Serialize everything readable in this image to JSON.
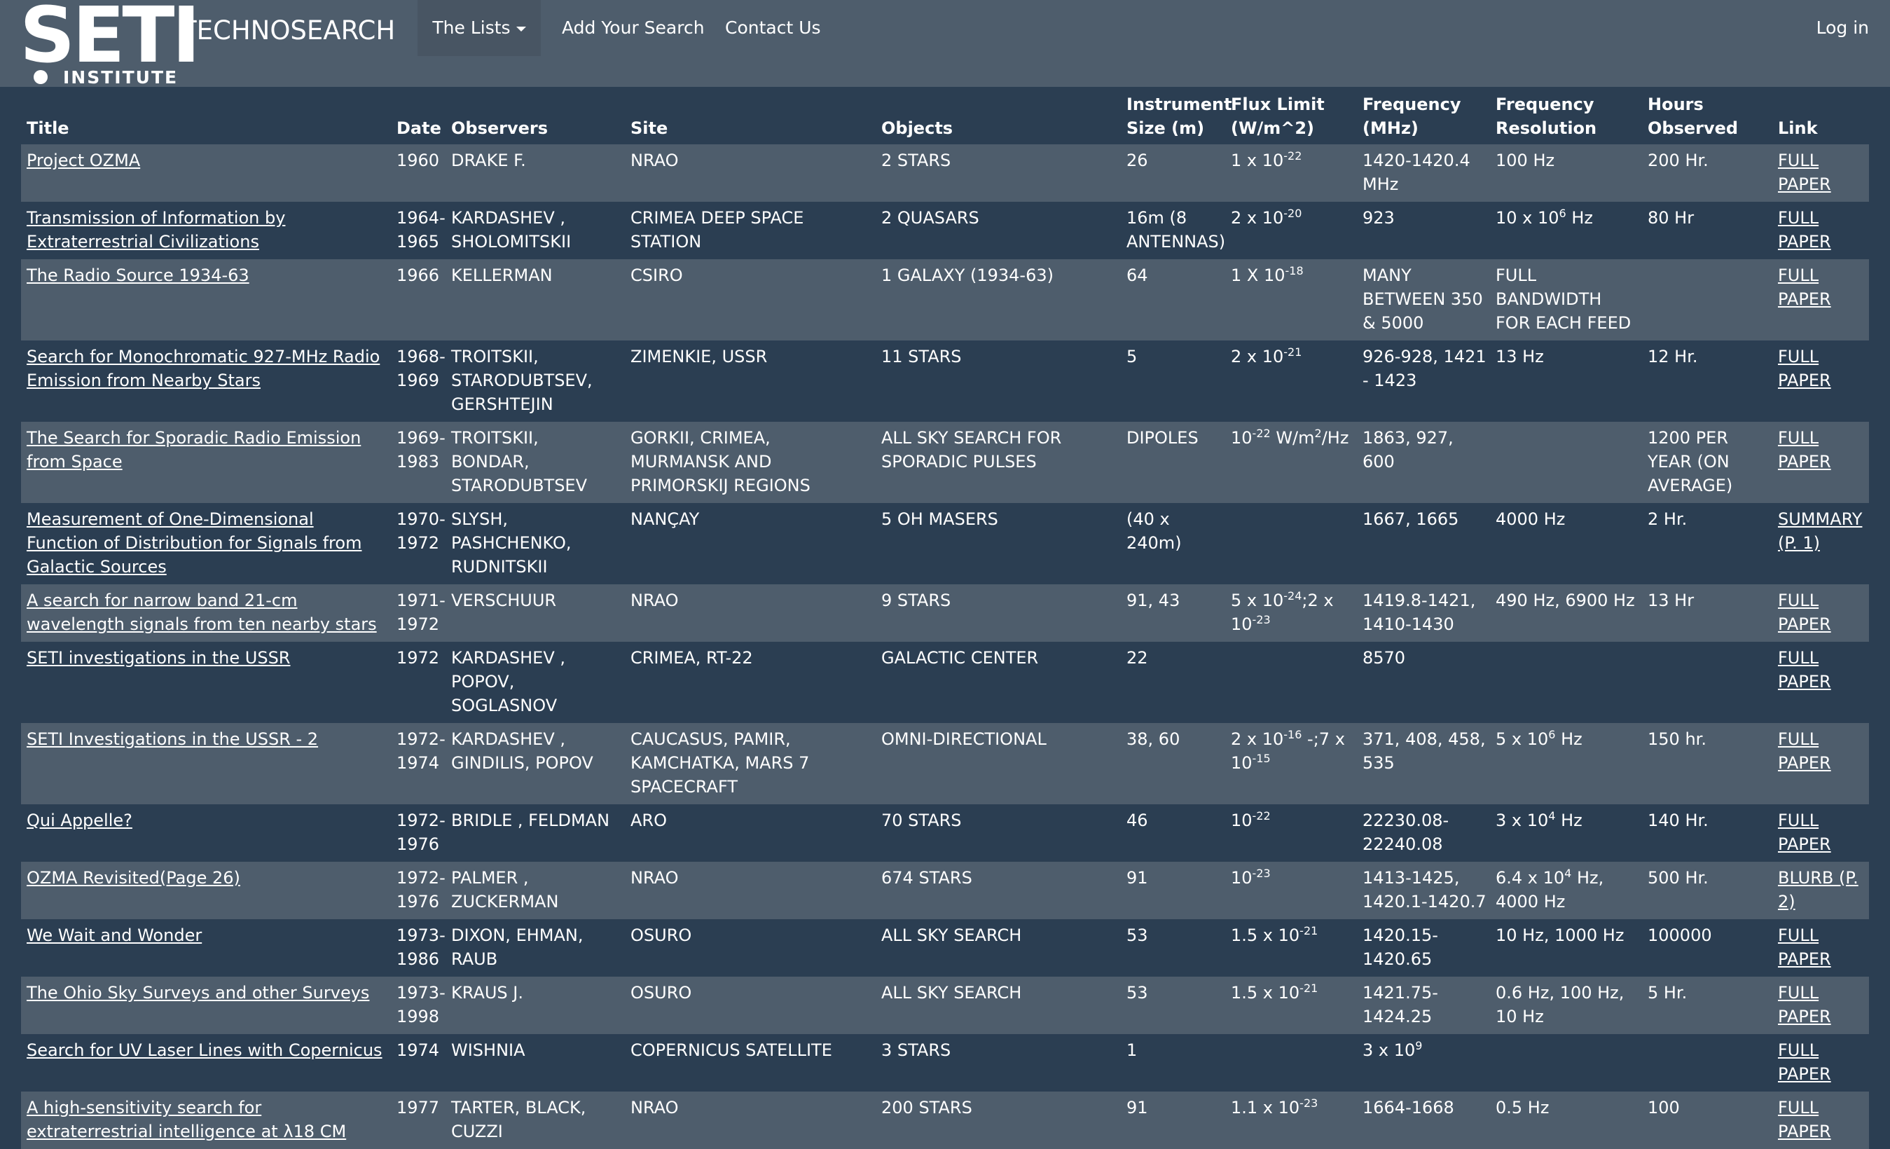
{
  "logo": {
    "main": "SETI",
    "sub": "INSTITUTE"
  },
  "navbar": {
    "brand": "TECHNOSEARCH",
    "lists_label": "The Lists",
    "add_label": "Add Your Search",
    "contact_label": "Contact Us",
    "login_label": "Log in"
  },
  "colors": {
    "navbar": "#4e5d6c",
    "background": "#2b3e52",
    "row_alt": "#4e5d6c",
    "text": "#ffffff"
  },
  "table": {
    "headers": [
      "Title",
      "Date",
      "Observers",
      "Site",
      "Objects",
      "Instrument Size (m)",
      "Flux Limit (W/m^2)",
      "Frequency (MHz)",
      "Frequency Resolution",
      "Hours Observed",
      "Link"
    ],
    "rows": [
      {
        "title": "Project OZMA",
        "date": "1960",
        "observers": "DRAKE F.",
        "site": "NRAO",
        "objects": "2 STARS",
        "size": "26",
        "flux": "1 x 10<sup>-22</sup>",
        "freq": "1420-1420.4 MHz",
        "res": "100 Hz",
        "hours": "200 Hr.",
        "link": "FULL PAPER"
      },
      {
        "title": "Transmission of Information by Extraterrestrial Civilizations",
        "date": "1964-1965",
        "observers": "KARDASHEV , SHOLOMITSKII",
        "site": "CRIMEA DEEP SPACE STATION",
        "objects": "2 QUASARS",
        "size": "16m (8 ANTENNAS)",
        "flux": "2 x 10<sup>-20</sup>",
        "freq": "923",
        "res": "10 x 10<sup>6</sup> Hz",
        "hours": "80 Hr",
        "link": "FULL PAPER"
      },
      {
        "title": "The Radio Source 1934-63",
        "date": "1966",
        "observers": "KELLERMAN",
        "site": "CSIRO",
        "objects": "1 GALAXY (1934-63)",
        "size": "64",
        "flux": "1 X 10<sup>-18</sup>",
        "freq": "MANY BETWEEN 350 & 5000",
        "res": "FULL BANDWIDTH FOR EACH FEED",
        "hours": "",
        "link": "FULL PAPER"
      },
      {
        "title": "Search for Monochromatic 927-MHz Radio Emission from Nearby Stars",
        "date": "1968-1969",
        "observers": "TROITSKII, STARODUBTSEV, GERSHTEJIN",
        "site": "ZIMENKIE, USSR",
        "objects": "11 STARS",
        "size": "5",
        "flux": "2 x 10<sup>-21</sup>",
        "freq": "926-928, 1421 - 1423",
        "res": "13 Hz",
        "hours": "12 Hr.",
        "link": "FULL PAPER"
      },
      {
        "title": "The Search for Sporadic Radio Emission from Space",
        "date": "1969-1983",
        "observers": "TROITSKII, BONDAR, STARODUBTSEV",
        "site": "GORKII, CRIMEA, MURMANSK AND PRIMORSKIJ REGIONS",
        "objects": "ALL SKY SEARCH FOR SPORADIC PULSES",
        "size": "DIPOLES",
        "flux": "10<sup>-22</sup> W/m<sup>2</sup>/Hz",
        "freq": "1863, 927, 600",
        "res": "",
        "hours": "1200 PER YEAR (ON AVERAGE)",
        "link": "FULL PAPER"
      },
      {
        "title": "Measurement of One-Dimensional Function of Distribution for Signals from Galactic Sources",
        "date": "1970-1972",
        "observers": "SLYSH, PASHCHENKO, RUDNITSKII",
        "site": "NANÇAY",
        "objects": "5 OH MASERS",
        "size": "(40 x 240m)",
        "flux": "",
        "freq": "1667, 1665",
        "res": "4000 Hz",
        "hours": "2 Hr.",
        "link": "SUMMARY (P. 1)"
      },
      {
        "title": "A search for narrow band 21-cm wavelength signals from ten nearby stars",
        "date": "1971-1972",
        "observers": "VERSCHUUR",
        "site": "NRAO",
        "objects": "9 STARS",
        "size": "91, 43",
        "flux": "5 x 10<sup>-24</sup>;2 x 10<sup>-23</sup>",
        "freq": "1419.8-1421, 1410-1430",
        "res": "490 Hz, 6900 Hz",
        "hours": "13 Hr",
        "link": "FULL PAPER"
      },
      {
        "title": "SETI investigations in the USSR",
        "date": "1972",
        "observers": "KARDASHEV , POPOV, SOGLASNOV",
        "site": "CRIMEA, RT-22",
        "objects": "GALACTIC CENTER",
        "size": "22",
        "flux": "",
        "freq": "8570",
        "res": "",
        "hours": "",
        "link": "FULL PAPER"
      },
      {
        "title": "SETI Investigations in the USSR - 2",
        "date": "1972-1974",
        "observers": "KARDASHEV , GINDILIS, POPOV",
        "site": "CAUCASUS, PAMIR, KAMCHATKA, MARS 7 SPACECRAFT",
        "objects": "OMNI-DIRECTIONAL",
        "size": "38, 60",
        "flux": "2 x 10<sup>-16</sup> -;7 x 10<sup>-15</sup>",
        "freq": "371, 408, 458, 535",
        "res": "5 x 10<sup>6</sup> Hz",
        "hours": "150 hr.",
        "link": "FULL PAPER"
      },
      {
        "title": "Qui Appelle?",
        "date": "1972-1976",
        "observers": "BRIDLE , FELDMAN",
        "site": "ARO",
        "objects": "70 STARS",
        "size": "46",
        "flux": "10<sup>-22</sup>",
        "freq": "22230.08-22240.08",
        "res": "3 x 10<sup>4</sup> Hz",
        "hours": "140 Hr.",
        "link": "FULL PAPER"
      },
      {
        "title": "OZMA Revisited(Page 26)",
        "date": "1972-1976",
        "observers": "PALMER , ZUCKERMAN",
        "site": "NRAO",
        "objects": "674 STARS",
        "size": "91",
        "flux": "10<sup>-23</sup>",
        "freq": "1413-1425, 1420.1-1420.7",
        "res": "6.4 x 10<sup>4</sup> Hz, 4000 Hz",
        "hours": "500 Hr.",
        "link": "BLURB (P. 2)"
      },
      {
        "title": "We Wait and Wonder",
        "date": "1973-1986",
        "observers": "DIXON, EHMAN, RAUB",
        "site": "OSURO",
        "objects": "ALL SKY SEARCH",
        "size": "53",
        "flux": "1.5 x 10<sup>-21</sup>",
        "freq": "1420.15-1420.65",
        "res": "10 Hz, 1000 Hz",
        "hours": "100000",
        "link": "FULL PAPER"
      },
      {
        "title": "The Ohio Sky Surveys and other Surveys",
        "date": "1973-1998",
        "observers": "KRAUS J.",
        "site": "OSURO",
        "objects": "ALL SKY SEARCH",
        "size": "53",
        "flux": "1.5 x 10<sup>-21</sup>",
        "freq": "1421.75-1424.25",
        "res": "0.6 Hz, 100 Hz, 10 Hz",
        "hours": "5 Hr.",
        "link": "FULL PAPER"
      },
      {
        "title": "Search for UV Laser Lines with Copernicus",
        "date": "1974",
        "observers": "WISHNIA",
        "site": "COPERNICUS SATELLITE",
        "objects": "3 STARS",
        "size": "1",
        "flux": "",
        "freq": "3 x 10<sup>9</sup>",
        "res": "",
        "hours": "",
        "link": "FULL PAPER"
      },
      {
        "title": "A high-sensitivity search for extraterrestrial intelligence at λ18 CM",
        "date": "1977",
        "observers": "TARTER, BLACK, CUZZI",
        "site": "NRAO",
        "objects": "200 STARS",
        "size": "91",
        "flux": "1.1 x 10<sup>-23</sup>",
        "freq": "1664-1668",
        "res": "0.5 Hz",
        "hours": "100",
        "link": "FULL PAPER"
      }
    ]
  }
}
